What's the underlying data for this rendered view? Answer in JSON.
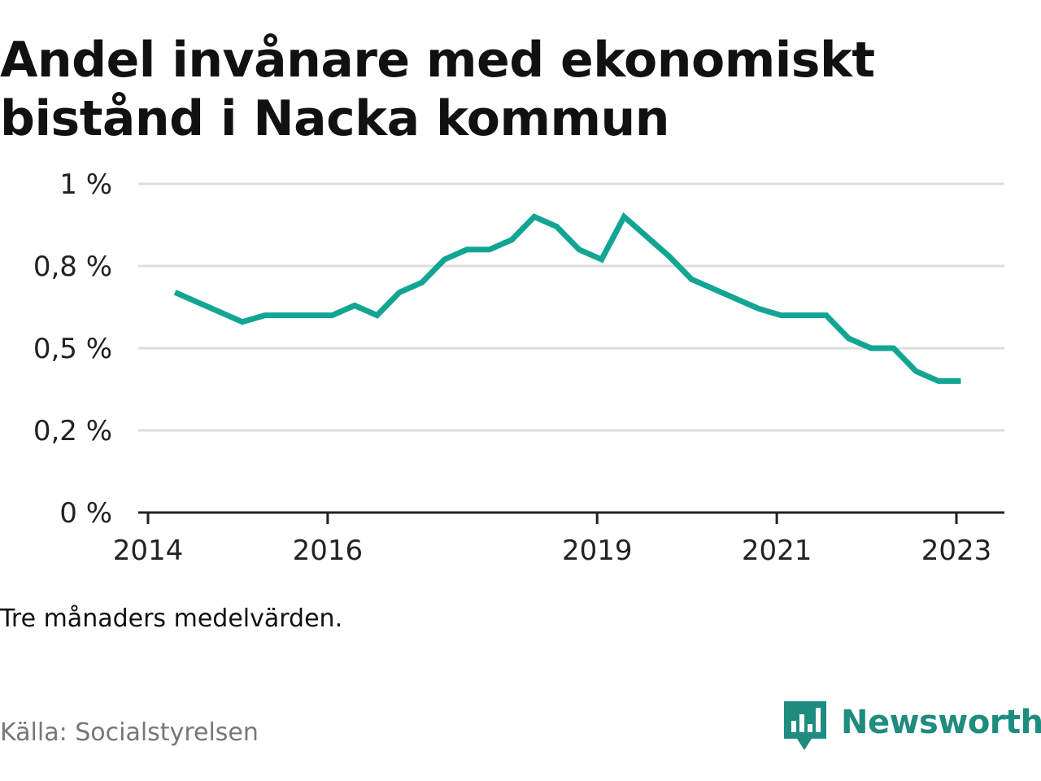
{
  "title": "Andel invånare med ekonomiskt bistånd i Nacka kommun",
  "note": "Tre månaders medelvärden.",
  "source": "Källa: Socialstyrelsen",
  "brand": {
    "name": "Newsworthy",
    "logo_icon": "bar-chart-speech-bubble-icon"
  },
  "colors": {
    "line": "#12a594",
    "grid": "#dddddd",
    "axis": "#222222",
    "brand": "#1e8c7e"
  },
  "chart_data": {
    "type": "line",
    "title": "Andel invånare med ekonomiskt bistånd i Nacka kommun",
    "xlabel": "",
    "ylabel": "",
    "x_ticks": [
      {
        "label": "2014",
        "value": 2014.0
      },
      {
        "label": "2016",
        "value": 2016.0
      },
      {
        "label": "2019",
        "value": 2019.0
      },
      {
        "label": "2021",
        "value": 2021.0
      },
      {
        "label": "2023",
        "value": 2023.0
      }
    ],
    "y_ticks": [
      {
        "label": "0 %",
        "value": 0
      },
      {
        "label": "0,2 %",
        "value": 0.25
      },
      {
        "label": "0,5 %",
        "value": 0.5
      },
      {
        "label": "0,8 %",
        "value": 0.75
      },
      {
        "label": "1 %",
        "value": 1.0
      }
    ],
    "xlim": [
      2014,
      2023.5
    ],
    "ylim": [
      0,
      1
    ],
    "grid": true,
    "series": [
      {
        "x": [
          2014.3,
          2014.55,
          2014.8,
          2015.05,
          2015.3,
          2015.55,
          2015.8,
          2016.05,
          2016.3,
          2016.55,
          2016.8,
          2017.05,
          2017.3,
          2017.55,
          2017.8,
          2018.05,
          2018.3,
          2018.55,
          2018.8,
          2019.05,
          2019.3,
          2019.55,
          2019.8,
          2020.05,
          2020.3,
          2020.55,
          2020.8,
          2021.05,
          2021.3,
          2021.55,
          2021.8,
          2022.05,
          2022.3,
          2022.55,
          2022.8,
          2023.05
        ],
        "values": [
          0.67,
          0.64,
          0.61,
          0.58,
          0.6,
          0.6,
          0.6,
          0.6,
          0.63,
          0.6,
          0.67,
          0.7,
          0.77,
          0.8,
          0.8,
          0.83,
          0.9,
          0.87,
          0.8,
          0.77,
          0.9,
          0.84,
          0.78,
          0.71,
          0.68,
          0.65,
          0.62,
          0.6,
          0.6,
          0.6,
          0.53,
          0.5,
          0.5,
          0.43,
          0.4,
          0.4
        ]
      }
    ]
  }
}
